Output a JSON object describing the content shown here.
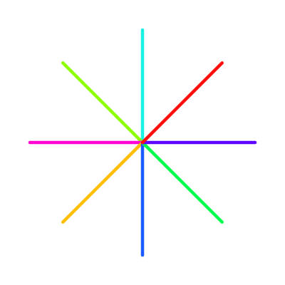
{
  "background": "#ffffff",
  "rays": [
    {
      "id": "ray-east",
      "direction": "east",
      "angle_deg": 0,
      "color": "#5e00ff"
    },
    {
      "id": "ray-northeast",
      "direction": "northeast",
      "angle_deg": 45,
      "color": "#ff0d0d"
    },
    {
      "id": "ray-north",
      "direction": "north",
      "angle_deg": 90,
      "color": "#19f2e3"
    },
    {
      "id": "ray-northwest",
      "direction": "northwest",
      "angle_deg": 135,
      "color": "#8cff00"
    },
    {
      "id": "ray-west",
      "direction": "west",
      "angle_deg": 180,
      "color": "#ff00d4"
    },
    {
      "id": "ray-southwest",
      "direction": "southwest",
      "angle_deg": 225,
      "color": "#ffbf00"
    },
    {
      "id": "ray-south",
      "direction": "south",
      "angle_deg": 270,
      "color": "#1a5cff"
    },
    {
      "id": "ray-southeast",
      "direction": "southeast",
      "angle_deg": 315,
      "color": "#00ff4c"
    }
  ]
}
